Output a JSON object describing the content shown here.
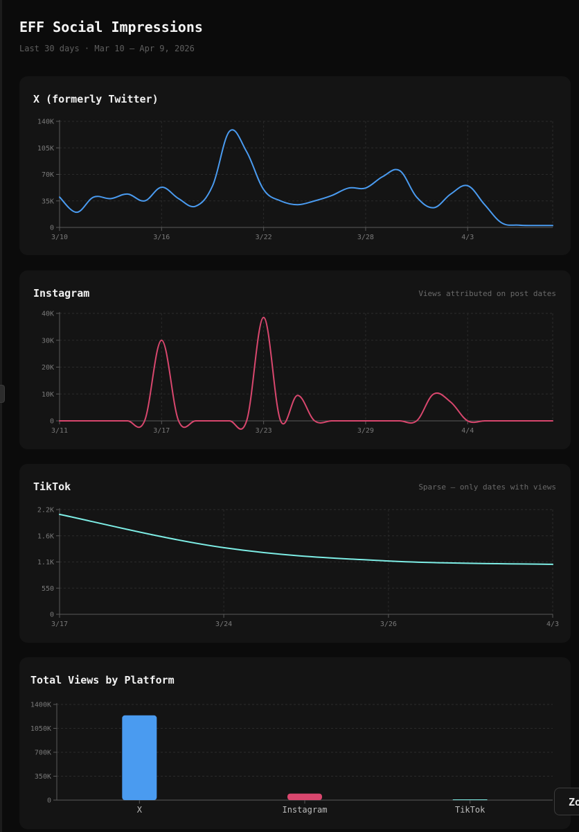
{
  "header": {
    "title": "EFF Social Impressions",
    "subtitle": "Last 30 days · Mar 10 – Apr 9, 2026"
  },
  "controls": {
    "zoom_label": "Zoom"
  },
  "chart_data": [
    {
      "id": "x",
      "type": "line",
      "title": "X (formerly Twitter)",
      "note": "",
      "color": "#4a9bf0",
      "ylim": [
        0,
        140000
      ],
      "y_ticks": [
        0,
        35000,
        70000,
        105000,
        140000
      ],
      "y_tick_labels": [
        "0",
        "35K",
        "70K",
        "105K",
        "140K"
      ],
      "x_ticks": [
        0,
        6,
        12,
        18,
        24
      ],
      "x_tick_labels": [
        "3/10",
        "3/16",
        "3/22",
        "3/28",
        "4/3"
      ],
      "x_max": 29,
      "x": [
        0,
        1,
        2,
        3,
        4,
        5,
        6,
        7,
        8,
        9,
        10,
        11,
        12,
        13,
        14,
        15,
        16,
        17,
        18,
        19,
        20,
        21,
        22,
        23,
        24,
        25,
        26,
        27,
        28,
        29
      ],
      "values": [
        40000,
        20000,
        40000,
        38000,
        44000,
        35000,
        53000,
        38000,
        28000,
        55000,
        127000,
        100000,
        50000,
        35000,
        30000,
        35000,
        42000,
        52000,
        52000,
        67000,
        75000,
        40000,
        26000,
        44000,
        55000,
        30000,
        6000,
        3000,
        2500,
        2500
      ]
    },
    {
      "id": "instagram",
      "type": "line",
      "title": "Instagram",
      "note": "Views attributed on post dates",
      "color": "#d9476e",
      "ylim": [
        0,
        40000
      ],
      "y_ticks": [
        0,
        10000,
        20000,
        30000,
        40000
      ],
      "y_tick_labels": [
        "0",
        "10K",
        "20K",
        "30K",
        "40K"
      ],
      "x_ticks": [
        0,
        6,
        12,
        18,
        24
      ],
      "x_tick_labels": [
        "3/11",
        "3/17",
        "3/23",
        "3/29",
        "4/4"
      ],
      "x_max": 29,
      "x": [
        0,
        1,
        2,
        3,
        4,
        5,
        6,
        7,
        8,
        9,
        10,
        11,
        12,
        13,
        14,
        15,
        16,
        17,
        18,
        19,
        20,
        21,
        22,
        23,
        24,
        25,
        26,
        27,
        28,
        29
      ],
      "values": [
        0,
        0,
        0,
        0,
        0,
        0,
        30000,
        0,
        0,
        0,
        0,
        0,
        38500,
        0,
        9500,
        0,
        0,
        0,
        0,
        0,
        0,
        0,
        10000,
        7000,
        0,
        0,
        0,
        0,
        0,
        0
      ]
    },
    {
      "id": "tiktok",
      "type": "line",
      "title": "TikTok",
      "note": "Sparse — only dates with views",
      "color": "#7eeee6",
      "ylim": [
        0,
        2200
      ],
      "y_ticks": [
        0,
        550,
        1100,
        1650,
        2200
      ],
      "y_tick_labels": [
        "0",
        "550",
        "1.1K",
        "1.6K",
        "2.2K"
      ],
      "x_ticks": [
        0,
        1,
        2,
        3
      ],
      "x_tick_labels": [
        "3/17",
        "3/24",
        "3/26",
        "4/3"
      ],
      "x_max": 3,
      "x": [
        0,
        1,
        2,
        3
      ],
      "values": [
        2100,
        1400,
        1120,
        1050
      ]
    },
    {
      "id": "totals",
      "type": "bar",
      "title": "Total Views by Platform",
      "ylim": [
        0,
        1400000
      ],
      "y_ticks": [
        0,
        350000,
        700000,
        1050000,
        1400000
      ],
      "y_tick_labels": [
        "0",
        "350K",
        "700K",
        "1050K",
        "1400K"
      ],
      "categories": [
        "X",
        "Instagram",
        "TikTok"
      ],
      "values": [
        1240000,
        95000,
        5500
      ],
      "colors": [
        "#4a9bf0",
        "#d9476e",
        "#7eeee6"
      ]
    }
  ]
}
